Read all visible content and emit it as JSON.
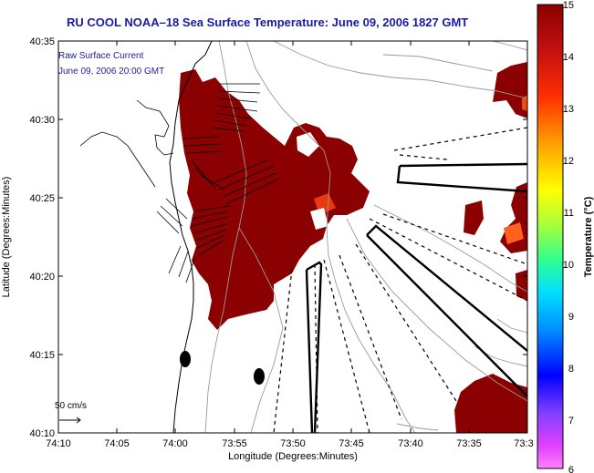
{
  "title": "RU COOL  NOAA–18  Sea Surface Temperature:  June 09, 2006 1827 GMT",
  "overlay": {
    "line1": "Raw Surface Current",
    "line2": "June 09, 2006 20:00 GMT"
  },
  "axes": {
    "xlabel": "Longitude (Degrees:Minutes)",
    "ylabel": "Latitude (Degrees:Minutes)",
    "x_ticks": [
      "74:10",
      "74:05",
      "74:00",
      "73:55",
      "73:50",
      "73:45",
      "73:40",
      "73:35",
      "73:3"
    ],
    "y_ticks": [
      "40:35",
      "40:30",
      "40:25",
      "40:20",
      "40:15",
      "40:10"
    ]
  },
  "scale_arrow": {
    "label": "50 cm/s"
  },
  "colorbar": {
    "label": "Temperature (°C)",
    "ticks": [
      "15",
      "14",
      "13",
      "12",
      "11",
      "10",
      "9",
      "8",
      "7",
      "6"
    ],
    "range": [
      6,
      15
    ]
  },
  "colors": {
    "sst_warm": "#8b0000",
    "land": "#ffffff",
    "title": "#1a1aa6"
  }
}
